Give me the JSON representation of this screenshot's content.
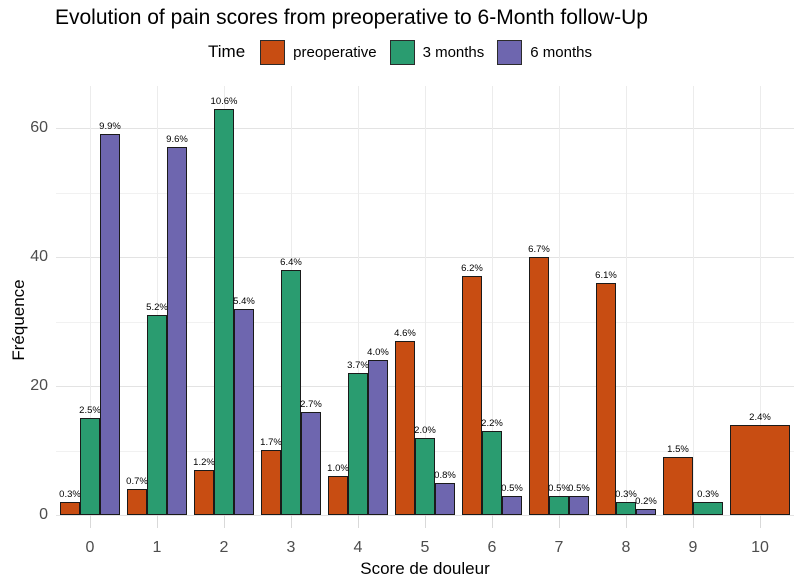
{
  "chart_data": {
    "type": "bar",
    "title": "Evolution of pain scores from preoperative to 6-Month follow-Up",
    "legend_title": "Time",
    "legend_position": "top",
    "xlabel": "Score de douleur",
    "ylabel": "Fréquence",
    "categories": [
      "0",
      "1",
      "2",
      "3",
      "4",
      "5",
      "6",
      "7",
      "8",
      "9",
      "10"
    ],
    "y_ticks": [
      0,
      20,
      40,
      60
    ],
    "y_minor_ticks": [
      10,
      30,
      50
    ],
    "ylim": [
      0,
      66
    ],
    "grid": true,
    "colors": {
      "preoperative": "#c84d12",
      "3_months": "#2a9c70",
      "6_months": "#6e66af"
    },
    "series": [
      {
        "name": "preoperative",
        "color": "#c84d12",
        "values": [
          2,
          4,
          7,
          10,
          6,
          27,
          37,
          40,
          36,
          9,
          14
        ],
        "pct_labels": [
          "0.3%",
          "0.7%",
          "1.2%",
          "1.7%",
          "1.0%",
          "4.6%",
          "6.2%",
          "6.7%",
          "6.1%",
          "1.5%",
          "2.4%"
        ]
      },
      {
        "name": "3 months",
        "color": "#2a9c70",
        "values": [
          15,
          31,
          63,
          38,
          22,
          12,
          13,
          3,
          2,
          2,
          null
        ],
        "pct_labels": [
          "2.5%",
          "5.2%",
          "10.6%",
          "6.4%",
          "3.7%",
          "2.0%",
          "2.2%",
          "0.5%",
          "0.3%",
          "0.3%",
          null
        ]
      },
      {
        "name": "6 months",
        "color": "#6e66af",
        "values": [
          59,
          57,
          32,
          16,
          24,
          5,
          3,
          3,
          1,
          null,
          null
        ],
        "pct_labels": [
          "9.9%",
          "9.6%",
          "5.4%",
          "2.7%",
          "4.0%",
          "0.8%",
          "0.5%",
          "0.5%",
          "0.2%",
          null,
          null
        ]
      }
    ]
  }
}
